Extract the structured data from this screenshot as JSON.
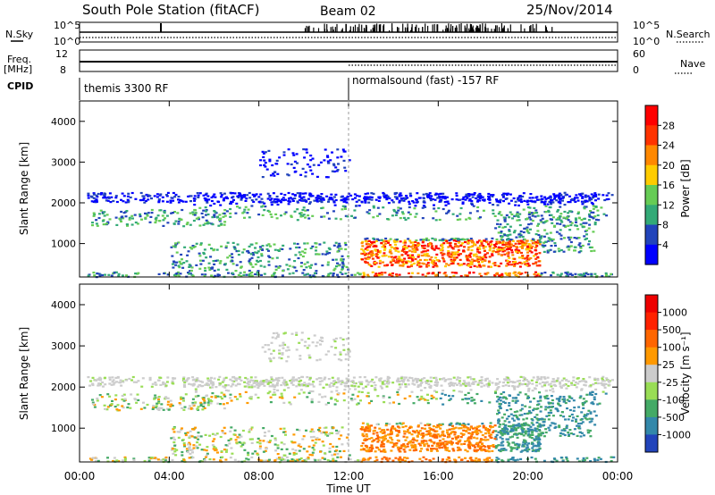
{
  "header": {
    "station": "South Pole Station (fitACF)",
    "beam": "Beam 02",
    "date": "25/Nov/2014"
  },
  "side_labels": {
    "nsky": "N.Sky",
    "freq_line1": "Freq.",
    "freq_line2": "[MHz]",
    "cpid": "CPID",
    "nsearch": "N.Search",
    "nave": "Nave"
  },
  "cpid_segments": [
    {
      "label": "themis 3300 RF",
      "start_hour": 0
    },
    {
      "label": "normalsound (fast) -157 RF",
      "start_hour": 12
    }
  ],
  "chart_data": [
    {
      "type": "line",
      "name": "noise-panel",
      "left_ticks": [
        "10^5",
        "10^0"
      ],
      "right_ticks": [
        "10^5",
        "10^0"
      ]
    },
    {
      "type": "line",
      "name": "frequency-panel",
      "left_ticks": [
        "12",
        "8"
      ],
      "right_ticks": [
        "60",
        "0"
      ],
      "ylim_left": [
        8,
        12
      ],
      "ylim_right": [
        0,
        60
      ]
    },
    {
      "type": "heatmap",
      "name": "power",
      "ylabel": "Slant Range [km]",
      "ylim": [
        180,
        4500
      ],
      "yticks": [
        1000,
        2000,
        3000,
        4000
      ],
      "xlim": [
        0,
        24
      ],
      "colorbar_label": "Power [dB]",
      "colorbar_ticks": [
        "28",
        "24",
        "20",
        "16",
        "12",
        "8",
        "4"
      ],
      "colors": [
        "#0000ff",
        "#2244bb",
        "#33aa77",
        "#66cc55",
        "#ffcc00",
        "#ff8800",
        "#ff3300",
        "#ff0000"
      ]
    },
    {
      "type": "heatmap",
      "name": "velocity",
      "ylabel": "Slant Range [km]",
      "ylim": [
        180,
        4500
      ],
      "yticks": [
        1000,
        2000,
        3000,
        4000
      ],
      "xlim": [
        0,
        24
      ],
      "xticks": [
        "00:00",
        "04:00",
        "08:00",
        "12:00",
        "16:00",
        "20:00",
        "00:00"
      ],
      "xlabel": "Time UT",
      "colorbar_label": "Velocity [m s⁻¹]",
      "colorbar_ticks": [
        "1000",
        "500",
        "100",
        "25",
        "-25",
        "-100",
        "-500",
        "-1000"
      ],
      "colors": [
        "#2244bb",
        "#3388aa",
        "#44aa66",
        "#99dd55",
        "#cccccc",
        "#ff9900",
        "#ff6600",
        "#ff2200",
        "#ee0000"
      ]
    }
  ]
}
